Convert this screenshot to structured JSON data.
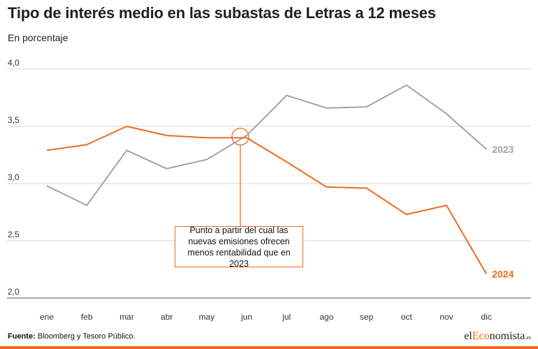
{
  "header": {
    "title": "Tipo de interés medio en las subastas de Letras a 12 meses",
    "subtitle": "En porcentaje"
  },
  "chart_data": {
    "type": "line",
    "title": "Tipo de interés medio en las subastas de Letras a 12 meses",
    "subtitle": "En porcentaje",
    "xlabel": "",
    "ylabel": "",
    "categories": [
      "ene",
      "feb",
      "mar",
      "abr",
      "may",
      "jun",
      "jul",
      "ago",
      "sep",
      "oct",
      "nov",
      "dic"
    ],
    "y_ticks": [
      "4,0",
      "3,5",
      "3,0",
      "2,5",
      "2,0"
    ],
    "y_tick_values": [
      4.0,
      3.5,
      3.0,
      2.5,
      2.0
    ],
    "ylim": [
      2.0,
      4.0
    ],
    "grid": "horizontal",
    "series": [
      {
        "name": "2023",
        "color": "#a3a3a3",
        "values": [
          2.98,
          2.81,
          3.29,
          3.13,
          3.21,
          3.42,
          3.77,
          3.66,
          3.67,
          3.86,
          3.61,
          3.3
        ]
      },
      {
        "name": "2024",
        "color": "#ed6a1c",
        "values": [
          3.29,
          3.34,
          3.5,
          3.42,
          3.4,
          3.4,
          3.19,
          2.97,
          2.96,
          2.73,
          2.81,
          2.21
        ]
      }
    ],
    "annotation": {
      "text": "Punto a partir del cual las nuevas emisiones ofrecen menos rentabilidad que en 2023",
      "category": "jun",
      "value": 3.41
    }
  },
  "footer": {
    "source_label": "Fuente:",
    "source_text": " Bloomberg  y Tesoro Público.",
    "logo_prefix": "el",
    "logo_accent": "Eco",
    "logo_suffix": "nomista",
    "logo_tld": ".es"
  }
}
